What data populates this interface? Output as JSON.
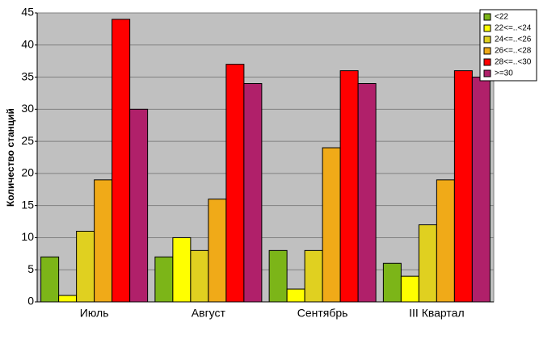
{
  "chart_data": {
    "type": "bar",
    "y_label": "Количество станций",
    "categories": [
      "Июль",
      "Август",
      "Сентябрь",
      "III Квартал"
    ],
    "series": [
      {
        "name": "<22",
        "color": "#7cb518",
        "values": [
          7,
          7,
          8,
          6
        ]
      },
      {
        "name": "22<=..<24",
        "color": "#ffff00",
        "values": [
          1,
          10,
          2,
          4
        ]
      },
      {
        "name": "24<=..<26",
        "color": "#e0d020",
        "values": [
          11,
          8,
          8,
          12
        ]
      },
      {
        "name": "26<=..<28",
        "color": "#f0aa18",
        "values": [
          19,
          16,
          24,
          19
        ]
      },
      {
        "name": "28<=..<30",
        "color": "#ff0000",
        "values": [
          44,
          37,
          36,
          36
        ]
      },
      {
        "name": ">=30",
        "color": "#b0206a",
        "values": [
          30,
          34,
          34,
          35
        ]
      }
    ],
    "ylim": [
      0,
      45
    ],
    "yticks": [
      0,
      5,
      10,
      15,
      20,
      25,
      30,
      35,
      40,
      45
    ],
    "grid": true,
    "legend": "top-right"
  }
}
